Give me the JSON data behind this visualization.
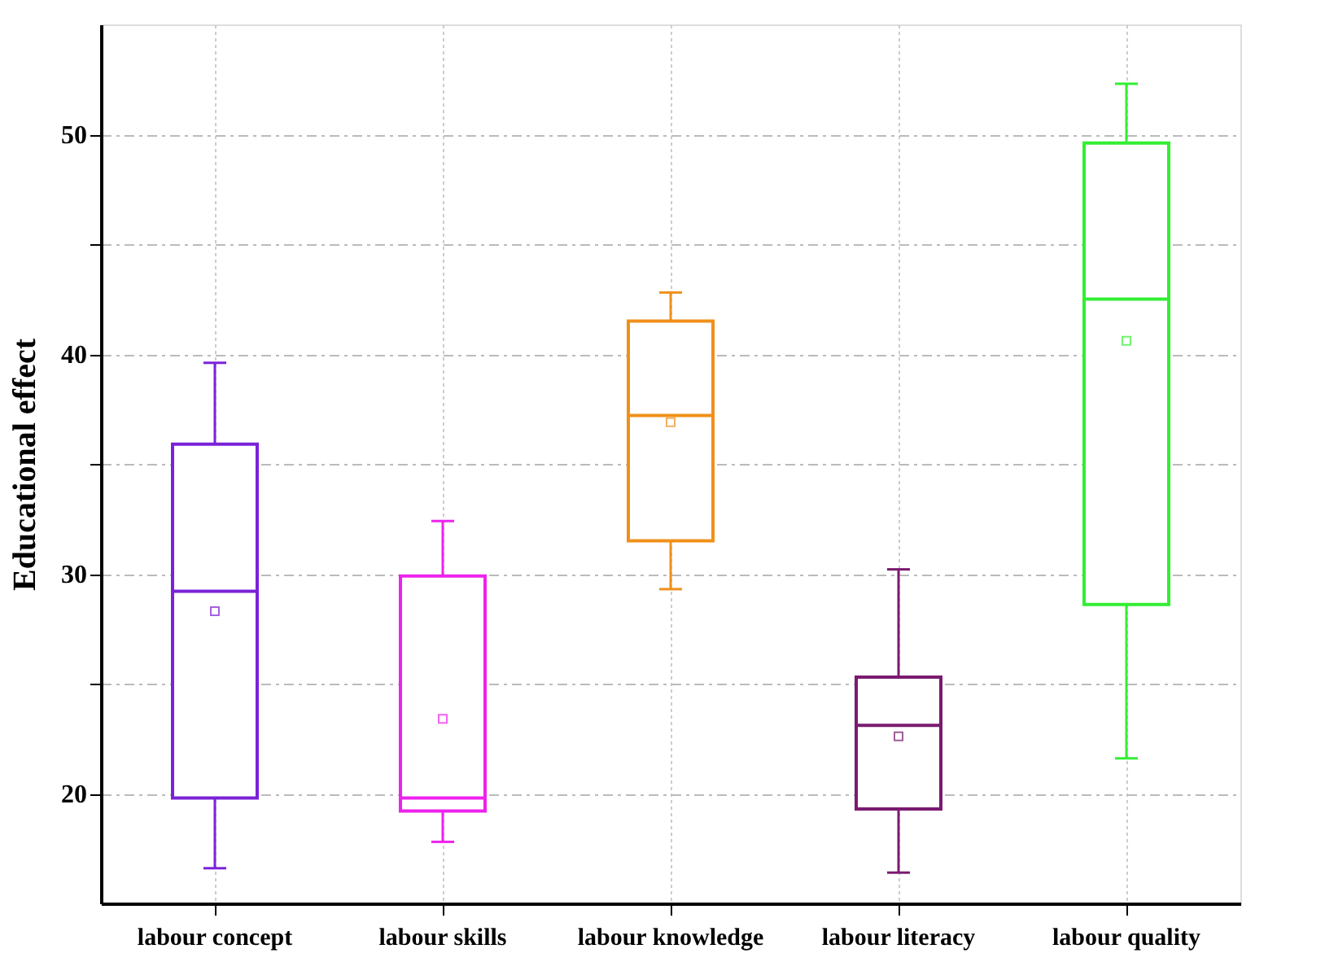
{
  "chart_data": {
    "type": "box",
    "ylabel": "Educational effect",
    "categories": [
      "labour concept",
      "labour skills",
      "labour knowledge",
      "labour literacy",
      "labour quality"
    ],
    "colors": [
      "#7b22d8",
      "#ee22ee",
      "#f0901a",
      "#7a1a70",
      "#33ee33"
    ],
    "boxes": [
      {
        "low": 16.6,
        "q1": 19.8,
        "median": 29.2,
        "q3": 35.9,
        "high": 39.6,
        "mean": 28.3
      },
      {
        "low": 17.8,
        "q1": 19.2,
        "median": 19.8,
        "q3": 29.9,
        "high": 32.4,
        "mean": 23.4
      },
      {
        "low": 29.3,
        "q1": 31.5,
        "median": 37.2,
        "q3": 41.5,
        "high": 42.8,
        "mean": 36.9
      },
      {
        "low": 16.4,
        "q1": 19.3,
        "median": 23.1,
        "q3": 25.3,
        "high": 30.2,
        "mean": 22.6
      },
      {
        "low": 21.6,
        "q1": 28.6,
        "median": 42.5,
        "q3": 49.6,
        "high": 52.3,
        "mean": 40.6
      }
    ],
    "ylim": [
      15,
      55
    ],
    "yticks": [
      20,
      {
        "value": 25,
        "label": null
      },
      30,
      {
        "value": 35,
        "label": null
      },
      40,
      {
        "value": 45,
        "label": null
      },
      50
    ],
    "grid": true,
    "legend": false
  }
}
